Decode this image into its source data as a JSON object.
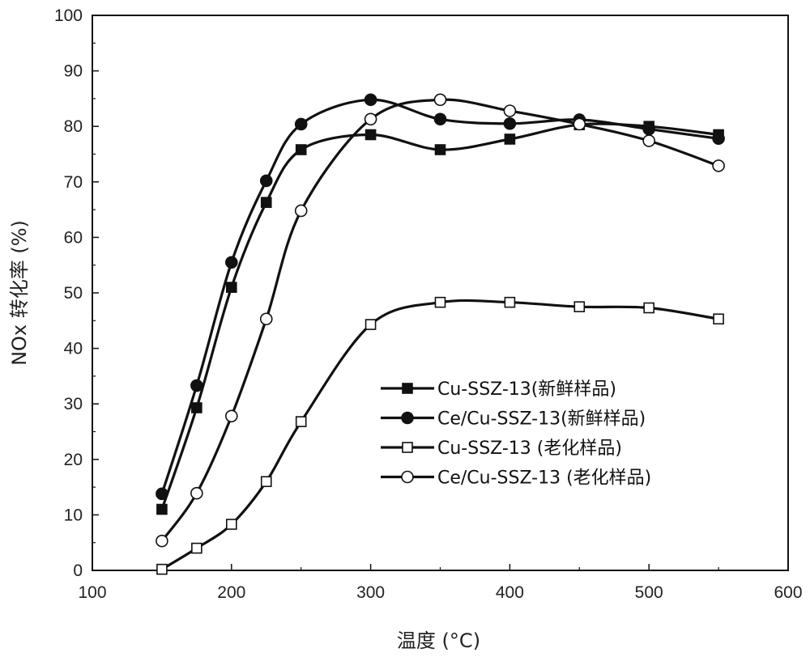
{
  "chart_data": {
    "type": "line",
    "xlabel": "温度 (",
    "xlabel_unit": "°C",
    "xlabel_close": ")",
    "ylabel": "NOx 转化率 (%)",
    "xlim": [
      100,
      600
    ],
    "ylim": [
      0,
      100
    ],
    "xticks": [
      100,
      200,
      300,
      400,
      500,
      600
    ],
    "yticks": [
      0,
      10,
      20,
      30,
      40,
      50,
      60,
      70,
      80,
      90,
      100
    ],
    "grid": false,
    "legend_position": "center-right",
    "series": [
      {
        "name": "Cu-SSZ-13(新鲜样品)",
        "marker": "filled-square",
        "x": [
          150,
          175,
          200,
          225,
          250,
          300,
          350,
          400,
          450,
          500,
          550
        ],
        "y": [
          11,
          29.3,
          51,
          66.3,
          75.8,
          78.5,
          75.8,
          77.7,
          80.3,
          80,
          78.5
        ]
      },
      {
        "name": "Ce/Cu-SSZ-13(新鲜样品)",
        "marker": "filled-circle",
        "x": [
          150,
          175,
          200,
          225,
          250,
          300,
          350,
          400,
          450,
          500,
          550
        ],
        "y": [
          13.8,
          33.3,
          55.5,
          70.2,
          80.4,
          84.8,
          81.3,
          80.5,
          81.2,
          79.5,
          77.8
        ]
      },
      {
        "name": "Cu-SSZ-13 (老化样品)",
        "marker": "open-square",
        "x": [
          150,
          175,
          200,
          225,
          250,
          300,
          350,
          400,
          450,
          500,
          550
        ],
        "y": [
          0.2,
          4,
          8.3,
          16,
          26.8,
          44.3,
          48.3,
          48.3,
          47.5,
          47.3,
          45.3
        ]
      },
      {
        "name": "Ce/Cu-SSZ-13 (老化样品)",
        "marker": "open-circle",
        "x": [
          150,
          175,
          200,
          225,
          250,
          300,
          350,
          400,
          450,
          500,
          550
        ],
        "y": [
          5.3,
          13.9,
          27.8,
          45.3,
          64.8,
          81.3,
          84.8,
          82.8,
          80.4,
          77.4,
          72.9
        ]
      }
    ]
  }
}
